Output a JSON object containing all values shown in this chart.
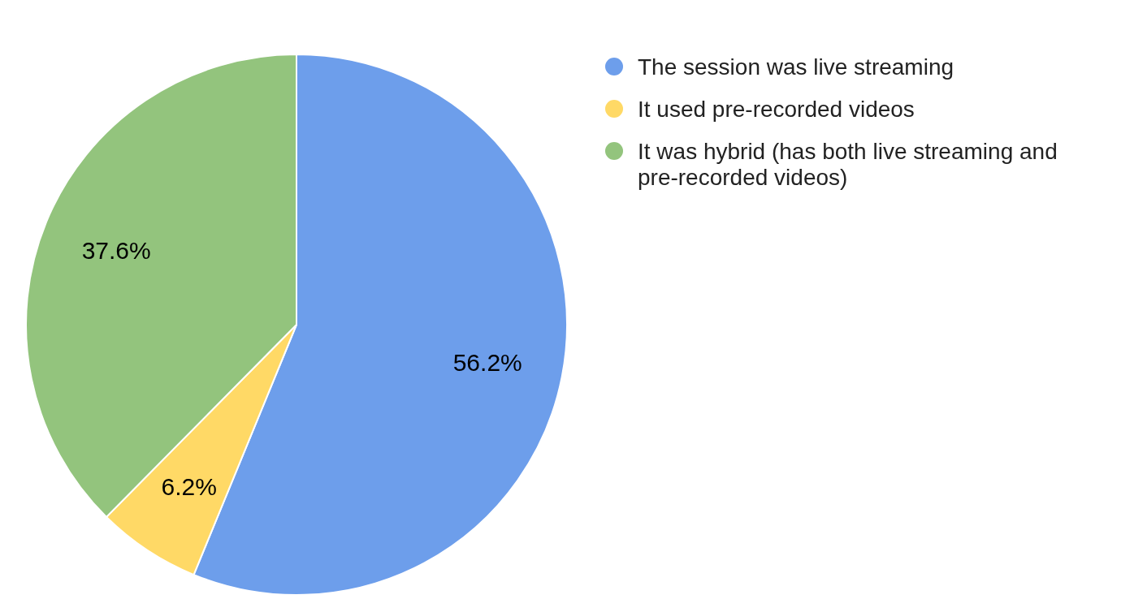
{
  "chart_data": {
    "type": "pie",
    "categories": [
      "The session was live streaming",
      "It used pre-recorded videos",
      "It was hybrid (has both live streaming and pre-recorded videos)"
    ],
    "values": [
      56.2,
      6.2,
      37.6
    ],
    "colors": [
      "#6d9eeb",
      "#ffd966",
      "#93c47d"
    ],
    "value_labels": [
      "56.2%",
      "6.2%",
      "37.6%"
    ],
    "legend": "right"
  }
}
